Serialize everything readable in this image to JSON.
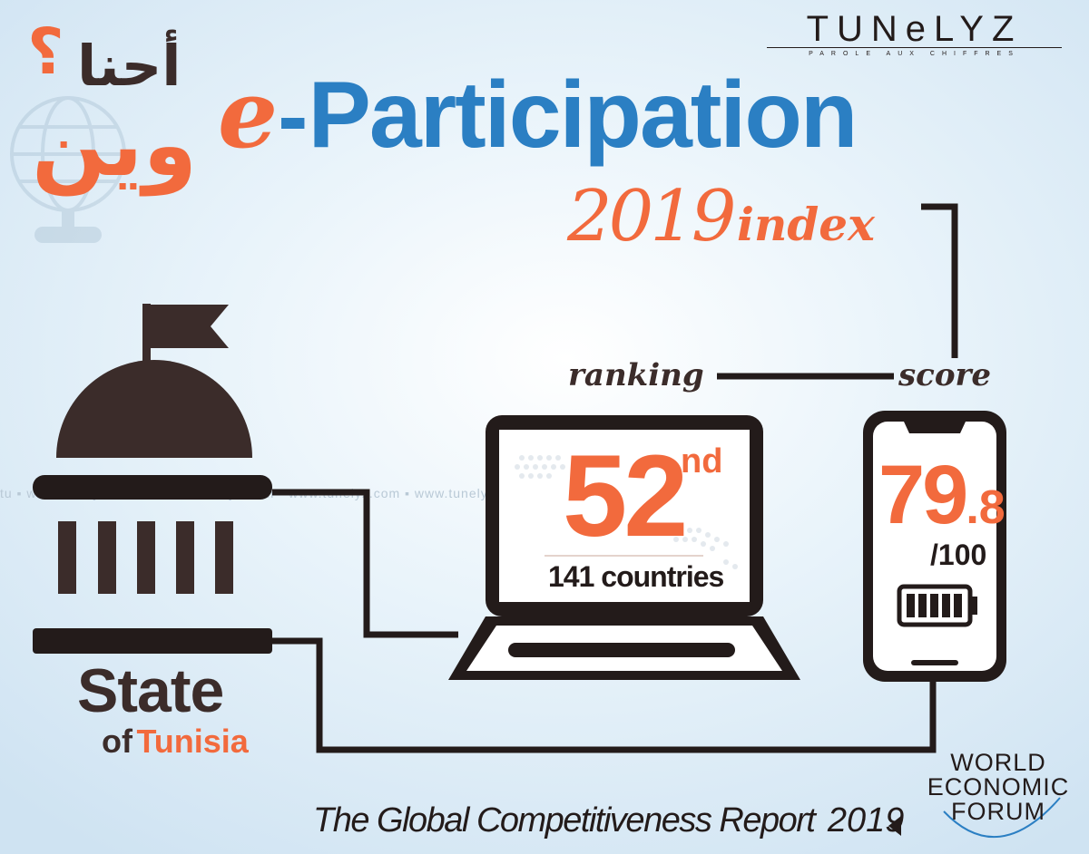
{
  "colors": {
    "orange": "#f26a3d",
    "blue": "#2b7fc3",
    "dark": "#3b2c2a",
    "black": "#231b1a",
    "light": "#ffffff"
  },
  "brand": {
    "logo_text": "TUNeLYZ",
    "tagline": "PAROLE AUX CHIFFRES"
  },
  "arabic": {
    "line1": "أحنا",
    "line2": "وين",
    "mark": "؟"
  },
  "title": {
    "prefix": "e",
    "dash": "-",
    "main": "Participation",
    "year": "2019",
    "suffix": "index"
  },
  "labels": {
    "ranking": "ranking",
    "score": "score"
  },
  "ranking": {
    "value": "52",
    "suffix": "nd",
    "total": "141 countries"
  },
  "score": {
    "value": "79",
    "decimal": ".8",
    "max": "/100"
  },
  "state": {
    "line1": "State",
    "of": "of",
    "country": "Tunisia"
  },
  "watermark": "tu ▪ www.tunelyz.com ▪ ▪ www.tunelyz.com ▪ www.tunelyz.com ▪ www.tunelyz.com ▪ www.tunelyz.com ▪ www.tu",
  "footer": {
    "report": "The Global Competitiveness Report",
    "year": "2019"
  },
  "wef": {
    "line1": "WORLD",
    "line2": "ECONOMIC",
    "line3": "FORUM"
  }
}
